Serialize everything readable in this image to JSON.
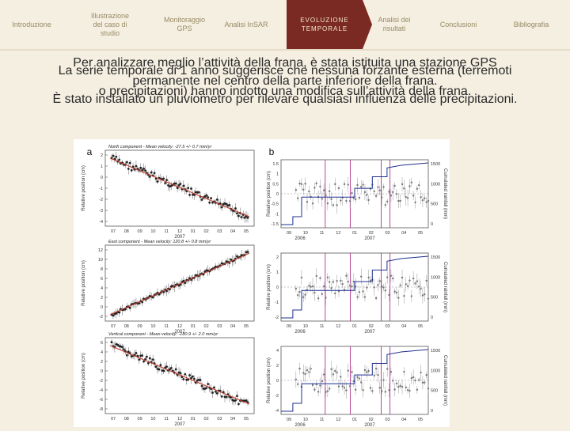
{
  "nav": {
    "tabs": [
      {
        "label": "Introduzione",
        "active": false
      },
      {
        "label": "Illustrazione del caso di studio",
        "active": false
      },
      {
        "label": "Monitoraggio GPS",
        "active": false
      },
      {
        "label": "Analisi InSAR",
        "active": false
      },
      {
        "label": "EVOLUZIONE TEMPORALE",
        "active": true
      },
      {
        "label": "Analisi dei risultati",
        "active": false
      },
      {
        "label": "Conclusioni",
        "active": false
      },
      {
        "label": "Bibliografia",
        "active": false
      }
    ]
  },
  "body": {
    "lines": [
      "Per analizzare meglio l’attività della frana, è stata istituita una stazione GPS",
      "La serie temporale di 1 anno suggerisce che nessuna forzante esterna (terremoti",
      "permanente nel centro della parte inferiore della frana.",
      "o precipitazioni) hanno indotto una modifica sull’attività della frana.",
      "È stato installato un pluviometro per rilevare qualsiasi influenza delle precipitazioni."
    ]
  },
  "figure": {
    "panel_a_letter": "a",
    "panel_b_letter": "b",
    "left_panels": [
      {
        "title": "North component - Mean velocity: -27.5 +/- 0.7 mm/yr",
        "ylabel": "Relative position (cm)",
        "yticks": [
          "2",
          "1",
          "0",
          "-1",
          "-2",
          "-3",
          "-4"
        ],
        "xticks": [
          "07",
          "08",
          "09",
          "10",
          "11",
          "12",
          "01",
          "02",
          "03",
          "04",
          "05"
        ],
        "year": "2007",
        "trend": "down"
      },
      {
        "title": "East component - Mean velocity: 120.8 +/- 0.8 mm/yr",
        "ylabel": "Relative position (cm)",
        "yticks": [
          "12",
          "10",
          "8",
          "6",
          "4",
          "2",
          "0",
          "-2"
        ],
        "xticks": [
          "07",
          "08",
          "09",
          "10",
          "11",
          "12",
          "01",
          "02",
          "03",
          "04",
          "05"
        ],
        "year": "2007",
        "trend": "up"
      },
      {
        "title": "Vertical component - Mean velocity: -180.9 +/- 2.0 mm/yr",
        "ylabel": "Relative position (cm)",
        "yticks": [
          "6",
          "4",
          "2",
          "0",
          "-2",
          "-4",
          "-6",
          "-8"
        ],
        "xticks": [
          "07",
          "08",
          "09",
          "10",
          "11",
          "12",
          "01",
          "02",
          "03",
          "04",
          "05"
        ],
        "year": "2007",
        "trend": "down"
      }
    ],
    "right_panels": [
      {
        "ylabel": "Relative position (cm)",
        "ylabel_right": "Cumulated rainfall (mm)",
        "yticks": [
          "1.5",
          "1",
          "0.5",
          "0",
          "-0.5",
          "-1",
          "-1.5"
        ],
        "yticks_right": [
          "1500",
          "1000",
          "500",
          "0"
        ]
      },
      {
        "ylabel": "Relative position (cm)",
        "ylabel_right": "Cumulated rainfall (mm)",
        "yticks": [
          "2",
          "1",
          "0",
          "-1",
          "-2"
        ],
        "yticks_right": [
          "1500",
          "1000",
          "500",
          "0"
        ]
      },
      {
        "ylabel": "Relative position (cm)",
        "ylabel_right": "Cumulated rainfall (mm)",
        "yticks": [
          "4",
          "2",
          "0",
          "-2",
          "-4"
        ],
        "yticks_right": [
          "1500",
          "1000",
          "500",
          "0"
        ]
      }
    ],
    "right_xticks": [
      "09",
      "10",
      "11",
      "12",
      "01",
      "02",
      "03",
      "04",
      "05"
    ],
    "right_years": [
      "2006",
      "2007"
    ]
  }
}
